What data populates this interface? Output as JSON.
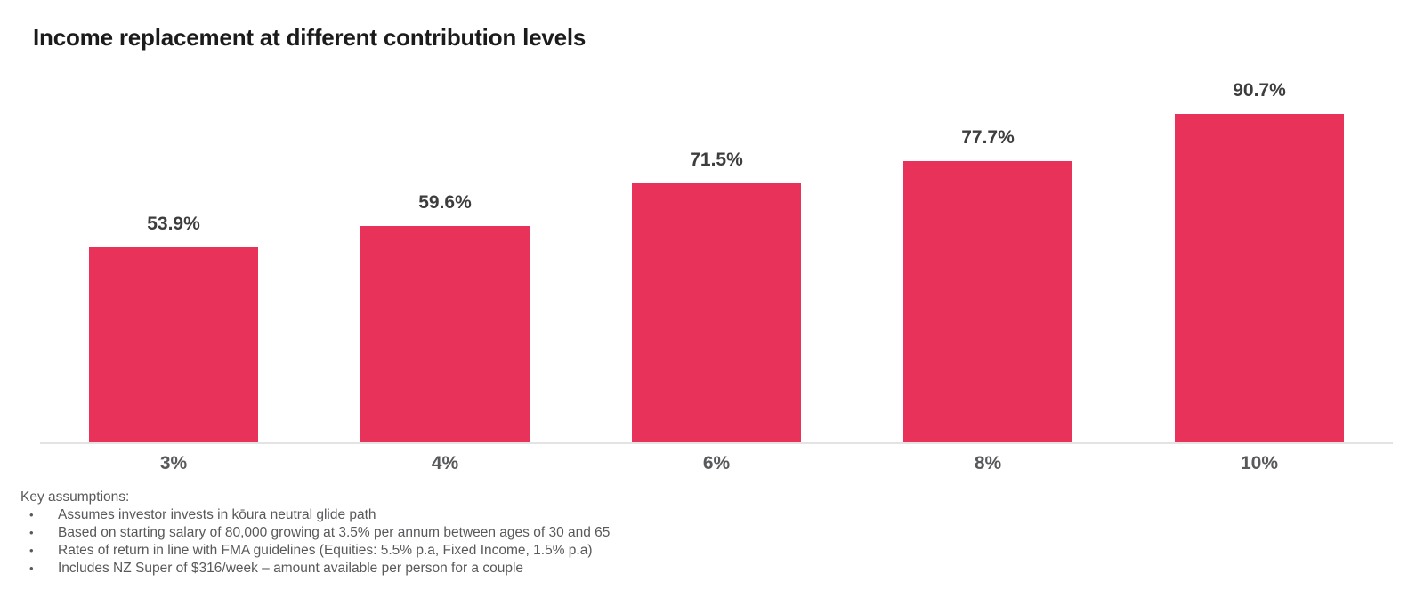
{
  "title": "Income replacement at different contribution levels",
  "chart_data": {
    "type": "bar",
    "title": "Income replacement at different contribution levels",
    "categories": [
      "3%",
      "4%",
      "6%",
      "8%",
      "10%"
    ],
    "values": [
      53.9,
      59.6,
      71.5,
      77.7,
      90.7
    ],
    "value_labels": [
      "53.9%",
      "59.6%",
      "71.5%",
      "77.7%",
      "90.7%"
    ],
    "xlabel": "",
    "ylabel": "",
    "ylim": [
      0,
      100
    ],
    "grid": false,
    "legend": "none",
    "bar_color": "#e8325a",
    "axis_line_color": "#e3e3e3",
    "value_label_color": "#3d3d3d",
    "category_label_color": "#58595b"
  },
  "assumptions": {
    "heading": "Key assumptions:",
    "bullet_char": "•",
    "items": [
      "Assumes investor invests in kōura neutral glide path",
      "Based on starting salary of 80,000 growing at 3.5% per annum between ages of 30 and 65",
      "Rates of return in line with FMA guidelines (Equities: 5.5% p.a, Fixed Income, 1.5% p.a)",
      "Includes NZ Super of $316/week – amount available per person for a couple"
    ]
  },
  "colors": {
    "background": "#ffffff",
    "title_text": "#1b1b1b",
    "body_text": "#58595b"
  }
}
